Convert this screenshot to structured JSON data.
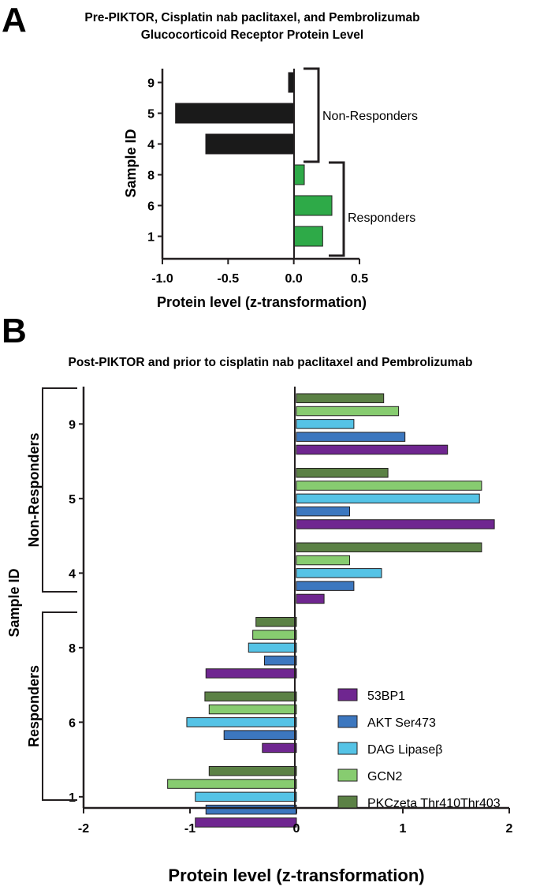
{
  "panels": {
    "a": {
      "letter": "A"
    },
    "b": {
      "letter": "B"
    }
  },
  "colors": {
    "panel_a_negative": "#1a1a1a",
    "panel_a_positive": "#2eaa48",
    "53BP1": "#6f2690",
    "AKT Ser473": "#3c77bf",
    "DAG Lipaseβ": "#55c3e6",
    "GCN2": "#87cc70",
    "PKCzeta Thr410Thr403": "#5b8145",
    "axis": "#231f20"
  },
  "chart_data": [
    {
      "type": "bar",
      "orientation": "horizontal",
      "title": "Pre-PIKTOR, Cisplatin nab paclitaxel, and Pembrolizumab",
      "subtitle": "Glucocorticoid Receptor Protein Level",
      "xlabel": "Protein level (z-transformation)",
      "ylabel": "Sample ID",
      "xlim": [
        -1.0,
        0.5
      ],
      "xticks": [
        "-1.0",
        "-0.5",
        "0.0",
        "0.5"
      ],
      "xtick_values": [
        -1.0,
        -0.5,
        0.0,
        0.5
      ],
      "categories": [
        "9",
        "5",
        "4",
        "8",
        "6",
        "1"
      ],
      "values": [
        -0.04,
        -0.9,
        -0.67,
        0.08,
        0.29,
        0.22
      ],
      "groups": [
        {
          "name": "Non-Responders",
          "members": [
            "9",
            "5",
            "4"
          ]
        },
        {
          "name": "Responders",
          "members": [
            "8",
            "6",
            "1"
          ]
        }
      ],
      "grid": false
    },
    {
      "type": "bar",
      "orientation": "horizontal",
      "title": "Post-PIKTOR and prior to cisplatin nab paclitaxel and Pembrolizumab",
      "xlabel": "Protein level (z-transformation)",
      "ylabel": "Sample ID",
      "xlim": [
        -2,
        2
      ],
      "xticks": [
        "-2",
        "-1",
        "0",
        "1",
        "2"
      ],
      "xtick_values": [
        -2,
        -1,
        0,
        1,
        2
      ],
      "categories": [
        "9",
        "5",
        "4",
        "8",
        "6",
        "1"
      ],
      "series": [
        {
          "name": "PKCzeta Thr410Thr403",
          "values": [
            0.82,
            0.86,
            1.74,
            -0.38,
            -0.86,
            -0.82
          ]
        },
        {
          "name": "GCN2",
          "values": [
            0.96,
            1.74,
            0.5,
            -0.41,
            -0.82,
            -1.21
          ]
        },
        {
          "name": "DAG Lipaseβ",
          "values": [
            0.54,
            1.72,
            0.8,
            -0.45,
            -1.03,
            -0.95
          ]
        },
        {
          "name": "AKT Ser473",
          "values": [
            1.02,
            0.5,
            0.54,
            -0.3,
            -0.68,
            -0.85
          ]
        },
        {
          "name": "53BP1",
          "values": [
            1.42,
            1.86,
            0.26,
            -0.85,
            -0.32,
            -0.95
          ]
        }
      ],
      "legend_order": [
        "53BP1",
        "AKT Ser473",
        "DAG Lipaseβ",
        "GCN2",
        "PKCzeta Thr410Thr403"
      ],
      "legend_position": "bottom-right",
      "groups": [
        {
          "name": "Non-Responders",
          "members": [
            "9",
            "5",
            "4"
          ]
        },
        {
          "name": "Responders",
          "members": [
            "8",
            "6",
            "1"
          ]
        }
      ],
      "grid": false
    }
  ]
}
